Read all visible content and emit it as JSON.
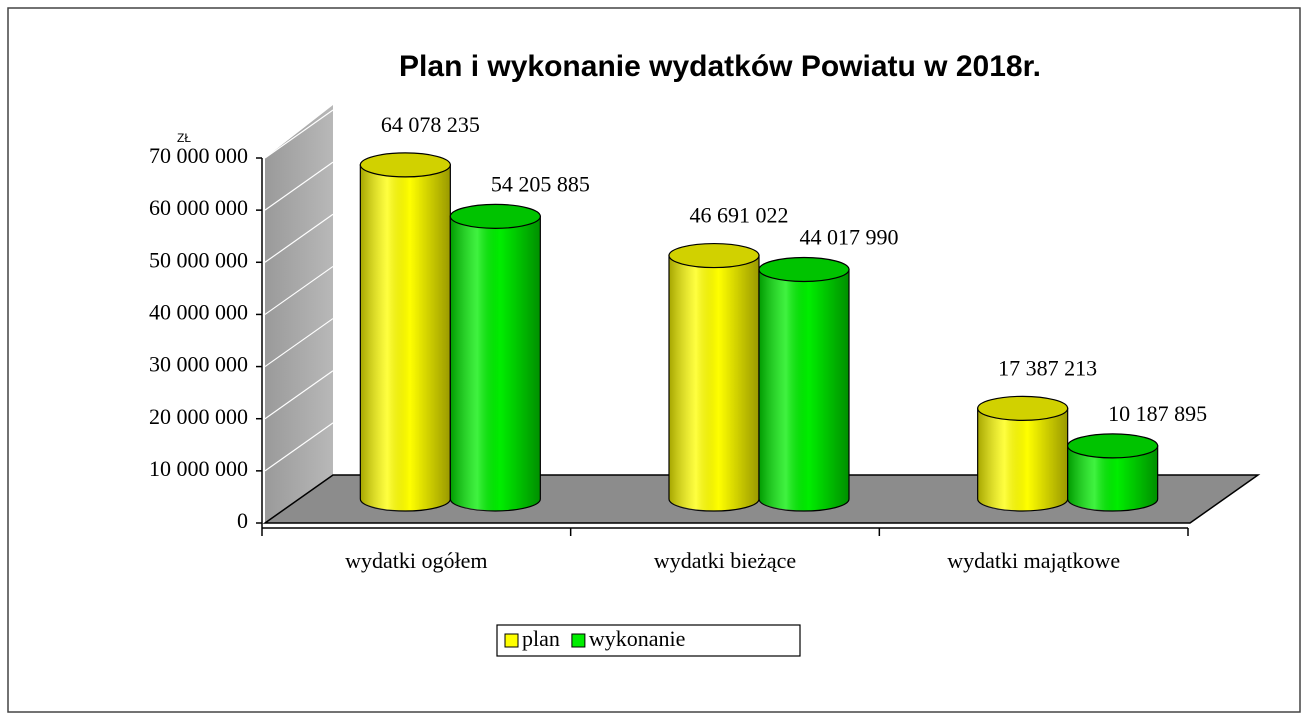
{
  "chart_data": {
    "type": "bar3d",
    "title": "Plan i wykonanie wydatków Powiatu w 2018r.",
    "y_unit": "ZŁ",
    "categories": [
      "wydatki ogółem",
      "wydatki bieżące",
      "wydatki majątkowe"
    ],
    "series": [
      {
        "name": "plan",
        "color": "#ffff00",
        "values": [
          64078235,
          46691022,
          17387213
        ],
        "value_labels": [
          "64 078 235",
          "46 691 022",
          "17 387 213"
        ]
      },
      {
        "name": "wykonanie",
        "color": "#00ee00",
        "values": [
          54205885,
          44017990,
          10187895
        ],
        "value_labels": [
          "54 205 885",
          "44 017 990",
          "10 187 895"
        ]
      }
    ],
    "ylim": [
      0,
      70000000
    ],
    "yticks": [
      0,
      {
        "value": 10000000,
        "label": "10 000 000"
      },
      {
        "value": 20000000,
        "label": "20 000 000"
      },
      {
        "value": 30000000,
        "label": "30 000 000"
      },
      {
        "value": 40000000,
        "label": "40 000 000"
      },
      {
        "value": 50000000,
        "label": "50 000 000"
      },
      {
        "value": 60000000,
        "label": "60 000 000"
      },
      {
        "value": 70000000,
        "label": "70 000 000"
      }
    ],
    "grid": true,
    "legend": "bottom"
  }
}
